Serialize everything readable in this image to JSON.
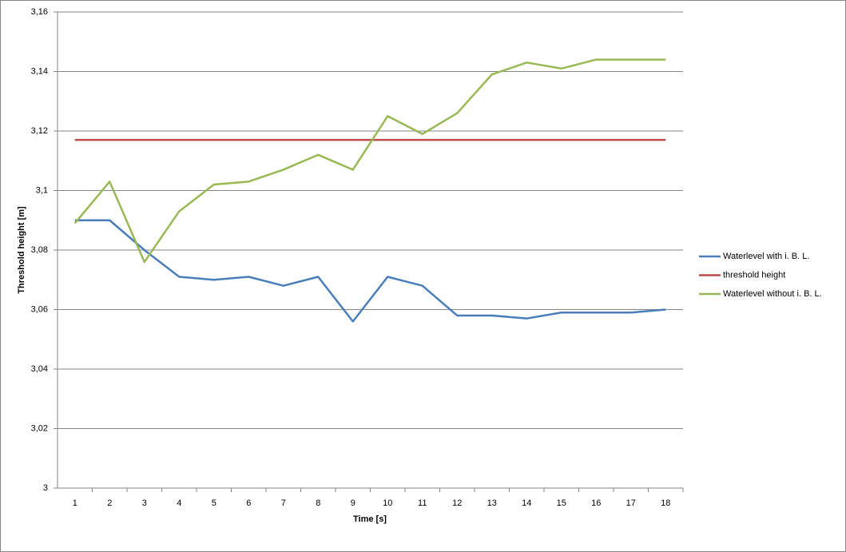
{
  "chart_data": {
    "type": "line",
    "x_label": "Time [s]",
    "y_label": "Threshold height [m]",
    "categories": [
      1,
      2,
      3,
      4,
      5,
      6,
      7,
      8,
      9,
      10,
      11,
      12,
      13,
      14,
      15,
      16,
      17,
      18
    ],
    "series": [
      {
        "name": "Waterlevel with i. B. L.",
        "color": "#4a7ebb",
        "values": [
          3.09,
          3.09,
          3.08,
          3.071,
          3.07,
          3.071,
          3.068,
          3.071,
          3.056,
          3.071,
          3.068,
          3.058,
          3.058,
          3.057,
          3.059,
          3.059,
          3.059,
          3.06
        ]
      },
      {
        "name": "threshold height",
        "color": "#be4b48",
        "values": [
          3.117,
          3.117,
          3.117,
          3.117,
          3.117,
          3.117,
          3.117,
          3.117,
          3.117,
          3.117,
          3.117,
          3.117,
          3.117,
          3.117,
          3.117,
          3.117,
          3.117,
          3.117
        ]
      },
      {
        "name": "Waterlevel without i. B. L.",
        "color": "#98b954",
        "values": [
          3.089,
          3.103,
          3.076,
          3.093,
          3.102,
          3.103,
          3.107,
          3.112,
          3.107,
          3.125,
          3.119,
          3.126,
          3.139,
          3.143,
          3.141,
          3.144,
          3.144,
          3.144
        ]
      }
    ],
    "ylim": [
      3,
      3.16
    ],
    "yticks": [
      3,
      {
        "value": 3.02,
        "label": "3,02"
      },
      {
        "value": 3.04,
        "label": "3,04"
      },
      {
        "value": 3.06,
        "label": "3,06"
      },
      {
        "value": 3.08,
        "label": "3,08"
      },
      {
        "value": 3.1,
        "label": "3,1"
      },
      {
        "value": 3.12,
        "label": "3,12"
      },
      {
        "value": 3.14,
        "label": "3,14"
      },
      {
        "value": 3.16,
        "label": "3,16"
      }
    ],
    "grid": true,
    "legend": "right"
  }
}
